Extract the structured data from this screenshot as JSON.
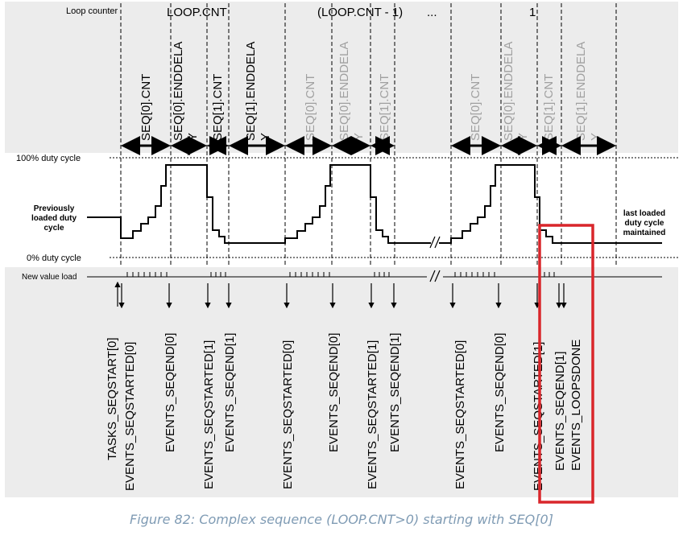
{
  "labels": {
    "loop_counter": "Loop counter",
    "loop_cnt": "LOOP.CNT",
    "loop_cnt_minus1": "(LOOP.CNT - 1)",
    "ellipsis": "...",
    "loop_one": "1",
    "duty_100": "100% duty cycle",
    "duty_0": "0% duty cycle",
    "new_value_load": "New value load",
    "prev_line1": "Previously",
    "prev_line2": "loaded duty",
    "prev_line3": "cycle",
    "last_line1": "last loaded",
    "last_line2": "duty cycle",
    "last_line3": "maintained",
    "slash": "//"
  },
  "seq_labels": [
    {
      "l1": "SEQ[0].CNT",
      "l2": "",
      "faded": false
    },
    {
      "l1": "SEQ[0].ENDDELA",
      "l2": "Y",
      "faded": false
    },
    {
      "l1": "SEQ[1].CNT",
      "l2": "",
      "faded": false
    },
    {
      "l1": "SEQ[1].ENDDELA",
      "l2": "Y",
      "faded": false
    },
    {
      "l1": "SEQ[0].CNT",
      "l2": "",
      "faded": true
    },
    {
      "l1": "SEQ[0].ENDDELA",
      "l2": "Y",
      "faded": true
    },
    {
      "l1": "SEQ[1].CNT",
      "l2": "",
      "faded": true
    },
    {
      "l1": "SEQ[0].CNT",
      "l2": "",
      "faded": true
    },
    {
      "l1": "SEQ[0].ENDDELA",
      "l2": "Y",
      "faded": true
    },
    {
      "l1": "SEQ[1].CNT",
      "l2": "",
      "faded": true
    },
    {
      "l1": "SEQ[1].ENDDELA",
      "l2": "Y",
      "faded": true
    }
  ],
  "events": [
    "TASKS_SEQSTART[0]",
    "EVENTS_SEQSTARTED[0]",
    "EVENTS_SEQEND[0]",
    "EVENTS_SEQSTARTED[1]",
    "EVENTS_SEQEND[1]",
    "EVENTS_SEQSTARTED[0]",
    "EVENTS_SEQEND[0]",
    "EVENTS_SEQSTARTED[1]",
    "EVENTS_SEQEND[1]",
    "EVENTS_SEQSTARTED[0]",
    "EVENTS_SEQEND[0]",
    "EVENTS_SEQSTARTED[1]",
    "EVENTS_SEQEND[1]",
    "EVENTS_LOOPSDONE"
  ],
  "caption": "Figure 82: Complex sequence (LOOP.CNT>0) starting with SEQ[0]",
  "colors": {
    "panel": "#ececec",
    "faded": "#a0a0a0",
    "highlight": "#d9262b",
    "caption": "#7f9bb4"
  }
}
